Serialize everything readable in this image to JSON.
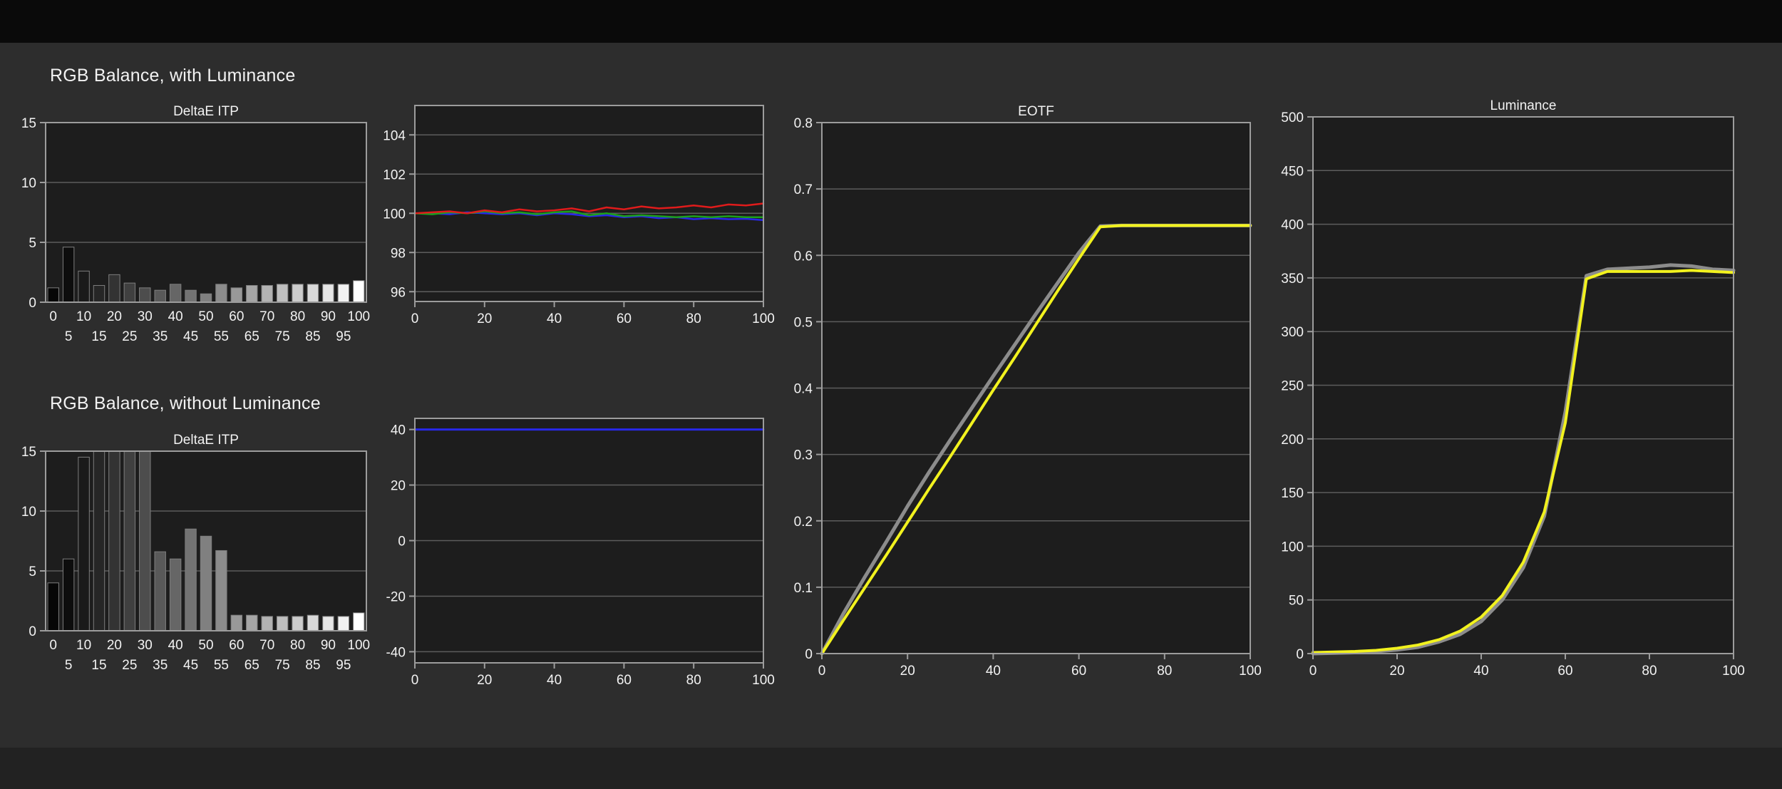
{
  "page": {
    "background": "#2d2d2d",
    "top_band": "#0a0a0a",
    "bottom_band": "#222222",
    "text_color": "#f2f2f2"
  },
  "sections": {
    "with_luminance_title": "RGB Balance, with Luminance",
    "without_luminance_title": "RGB Balance, without Luminance"
  },
  "chart_style": {
    "plot_bg": "#1d1d1d",
    "grid_color": "#5d5d5d",
    "border_color": "#9c9c9c",
    "tick_text_color": "#f2f2f2",
    "bar_outline": "#7d7d7d"
  },
  "chart_data": [
    {
      "id": "deltae-with-luminance",
      "type": "bar",
      "title": "DeltaE ITP",
      "categories": [
        0,
        5,
        10,
        15,
        20,
        25,
        30,
        35,
        40,
        45,
        50,
        55,
        60,
        65,
        70,
        75,
        80,
        85,
        90,
        95,
        100
      ],
      "values": [
        1.2,
        4.6,
        2.6,
        1.4,
        2.3,
        1.6,
        1.2,
        1.0,
        1.5,
        1.0,
        0.7,
        1.5,
        1.2,
        1.4,
        1.4,
        1.5,
        1.5,
        1.5,
        1.5,
        1.5,
        1.8
      ],
      "ylim": [
        0,
        15
      ],
      "yticks": [
        0,
        5,
        10,
        15
      ],
      "ytick_labels": [
        "0",
        "5",
        "10",
        "15"
      ],
      "grid": true,
      "bar_color_mode": "grayscale-by-stimulus-level"
    },
    {
      "id": "rgb-balance-with-luminance",
      "type": "line",
      "title": "",
      "x": [
        0,
        5,
        10,
        15,
        20,
        25,
        30,
        35,
        40,
        45,
        50,
        55,
        60,
        65,
        70,
        75,
        80,
        85,
        90,
        95,
        100
      ],
      "xlim": [
        0,
        100
      ],
      "xticks": [
        0,
        20,
        40,
        60,
        80,
        100
      ],
      "ylim": [
        95.5,
        105.5
      ],
      "yticks": [
        96,
        98,
        100,
        102,
        104
      ],
      "ytick_labels": [
        "96",
        "98",
        "100",
        "102",
        "104"
      ],
      "grid": true,
      "series": [
        {
          "name": "blue",
          "color": "#2828e8",
          "width": 2.5,
          "values": [
            100.0,
            100.0,
            99.95,
            100.05,
            100.0,
            99.95,
            100.0,
            99.9,
            100.0,
            99.95,
            99.85,
            99.9,
            99.8,
            99.85,
            99.75,
            99.8,
            99.7,
            99.75,
            99.7,
            99.72,
            99.65
          ]
        },
        {
          "name": "green",
          "color": "#1ca01c",
          "width": 2.5,
          "values": [
            100.0,
            99.95,
            100.05,
            100.0,
            100.1,
            100.0,
            100.05,
            99.95,
            100.05,
            100.1,
            99.9,
            100.0,
            99.85,
            99.9,
            99.85,
            99.8,
            99.85,
            99.8,
            99.85,
            99.8,
            99.8
          ]
        },
        {
          "name": "red",
          "color": "#e01b1b",
          "width": 2.5,
          "values": [
            100.0,
            100.05,
            100.1,
            100.0,
            100.15,
            100.05,
            100.2,
            100.1,
            100.15,
            100.25,
            100.1,
            100.3,
            100.2,
            100.35,
            100.25,
            100.3,
            100.4,
            100.3,
            100.45,
            100.4,
            100.5
          ]
        }
      ]
    },
    {
      "id": "deltae-without-luminance",
      "type": "bar",
      "title": "DeltaE ITP",
      "categories": [
        0,
        5,
        10,
        15,
        20,
        25,
        30,
        35,
        40,
        45,
        50,
        55,
        60,
        65,
        70,
        75,
        80,
        85,
        90,
        95,
        100
      ],
      "values": [
        4.0,
        6.0,
        14.5,
        15.5,
        15.5,
        15.5,
        15.5,
        6.6,
        6.0,
        8.5,
        7.9,
        6.7,
        1.3,
        1.3,
        1.2,
        1.2,
        1.2,
        1.3,
        1.2,
        1.2,
        1.5
      ],
      "ylim": [
        0,
        15
      ],
      "yticks": [
        0,
        5,
        10,
        15
      ],
      "ytick_labels": [
        "0",
        "5",
        "10",
        "15"
      ],
      "grid": true,
      "bar_color_mode": "grayscale-by-stimulus-level"
    },
    {
      "id": "rgb-balance-without-luminance",
      "type": "line",
      "title": "",
      "x": [
        0,
        100
      ],
      "xlim": [
        0,
        100
      ],
      "xticks": [
        0,
        20,
        40,
        60,
        80,
        100
      ],
      "ylim": [
        -44,
        44
      ],
      "yticks": [
        -40,
        -20,
        0,
        20,
        40
      ],
      "ytick_labels": [
        "-40",
        "-20",
        "0",
        "20",
        "40"
      ],
      "grid": true,
      "series": [
        {
          "name": "blue",
          "color": "#2828e8",
          "width": 3,
          "values": [
            40,
            40
          ]
        }
      ]
    },
    {
      "id": "eotf",
      "type": "line",
      "title": "EOTF",
      "x": [
        0,
        5,
        10,
        15,
        20,
        25,
        30,
        35,
        40,
        45,
        50,
        55,
        60,
        65,
        70,
        75,
        80,
        85,
        90,
        95,
        100
      ],
      "xlim": [
        0,
        100
      ],
      "xticks": [
        0,
        20,
        40,
        60,
        80,
        100
      ],
      "ylim": [
        0,
        0.8
      ],
      "yticks": [
        0,
        0.1,
        0.2,
        0.3,
        0.4,
        0.5,
        0.6,
        0.7,
        0.8
      ],
      "ytick_labels": [
        "0",
        "0.1",
        "0.2",
        "0.3",
        "0.4",
        "0.5",
        "0.6",
        "0.7",
        "0.8"
      ],
      "grid": true,
      "series": [
        {
          "name": "reference-gray",
          "color": "#8c8c8c",
          "width": 5,
          "values": [
            0,
            0.06,
            0.115,
            0.168,
            0.222,
            0.273,
            0.322,
            0.37,
            0.418,
            0.465,
            0.512,
            0.558,
            0.604,
            0.644,
            0.645,
            0.645,
            0.645,
            0.645,
            0.645,
            0.645,
            0.645
          ]
        },
        {
          "name": "measured-yellow",
          "color": "#f2f21e",
          "width": 4,
          "values": [
            0,
            0.05,
            0.099,
            0.148,
            0.198,
            0.248,
            0.297,
            0.347,
            0.397,
            0.446,
            0.496,
            0.546,
            0.595,
            0.643,
            0.645,
            0.645,
            0.645,
            0.645,
            0.645,
            0.645,
            0.645
          ]
        }
      ]
    },
    {
      "id": "luminance",
      "type": "line",
      "title": "Luminance",
      "x": [
        0,
        5,
        10,
        15,
        20,
        25,
        30,
        35,
        40,
        45,
        50,
        55,
        60,
        65,
        70,
        75,
        80,
        85,
        90,
        95,
        100
      ],
      "xlim": [
        0,
        100
      ],
      "xticks": [
        0,
        20,
        40,
        60,
        80,
        100
      ],
      "ylim": [
        0,
        500
      ],
      "yticks": [
        0,
        50,
        100,
        150,
        200,
        250,
        300,
        350,
        400,
        450,
        500
      ],
      "ytick_labels": [
        "0",
        "50",
        "100",
        "150",
        "200",
        "250",
        "300",
        "350",
        "400",
        "450",
        "500"
      ],
      "grid": true,
      "series": [
        {
          "name": "reference-gray",
          "color": "#8c8c8c",
          "width": 5,
          "values": [
            0,
            0.5,
            1,
            2,
            3.5,
            6,
            11,
            18,
            30,
            50,
            80,
            128,
            225,
            352,
            358,
            359,
            360,
            362,
            361,
            358,
            357
          ]
        },
        {
          "name": "measured-yellow",
          "color": "#f2f21e",
          "width": 4,
          "values": [
            1,
            1.5,
            2,
            3,
            5,
            8,
            13,
            21,
            34,
            54,
            85,
            132,
            215,
            349,
            356,
            356,
            356,
            356,
            357,
            356,
            355
          ]
        }
      ]
    }
  ]
}
